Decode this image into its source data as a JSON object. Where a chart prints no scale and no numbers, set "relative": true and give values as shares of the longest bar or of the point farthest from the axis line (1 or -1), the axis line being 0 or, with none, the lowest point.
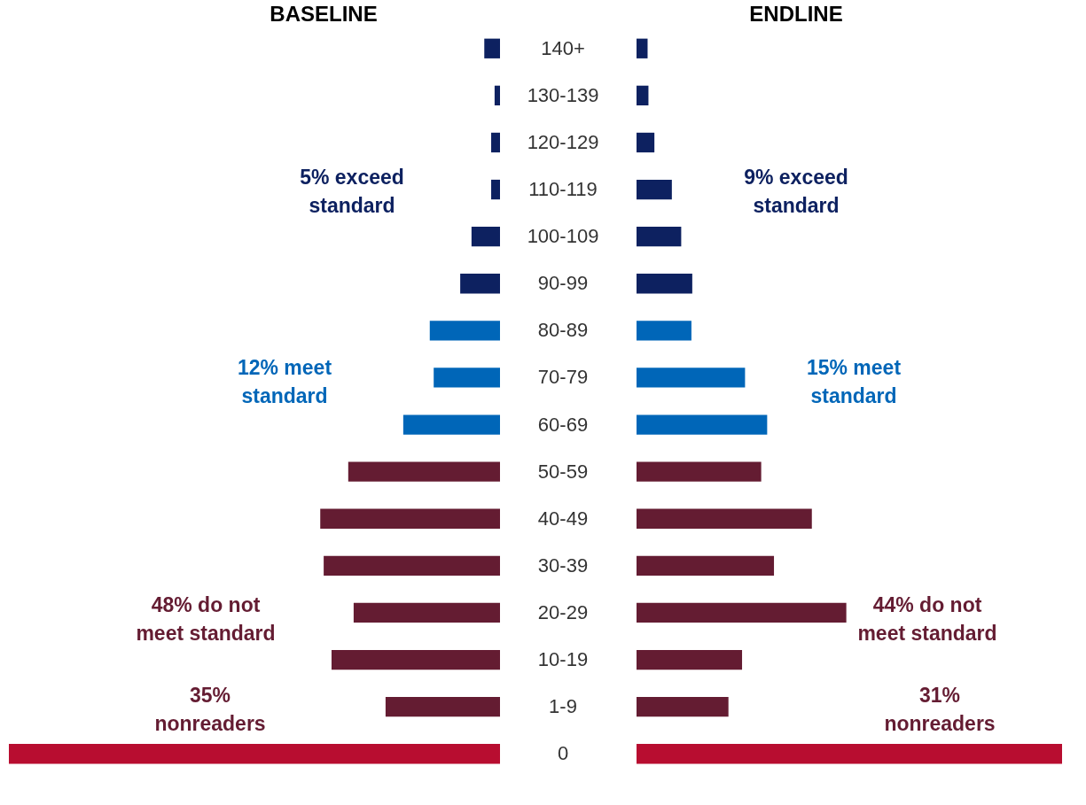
{
  "chart_data": [
    {
      "type": "bar",
      "orientation": "horizontal",
      "relative": true,
      "title": "BASELINE",
      "tick_labels": false,
      "categories": [
        "140+",
        "130-139",
        "120-129",
        "110-119",
        "100-109",
        "90-99",
        "80-89",
        "70-79",
        "60-69",
        "50-59",
        "40-49",
        "30-39",
        "20-29",
        "10-19",
        "1-9",
        "0"
      ],
      "values": [
        0.032,
        0.011,
        0.018,
        0.018,
        0.058,
        0.081,
        0.143,
        0.135,
        0.197,
        0.309,
        0.366,
        0.359,
        0.298,
        0.343,
        0.233,
        1
      ],
      "colors": [
        "#0d2160",
        "#0d2160",
        "#0d2160",
        "#0d2160",
        "#0d2160",
        "#0d2160",
        "#0066b8",
        "#0066b8",
        "#0066b8",
        "#641c32",
        "#641c32",
        "#641c32",
        "#641c32",
        "#641c32",
        "#641c32",
        "#b80d30"
      ],
      "annotations": [
        "5% exceed standard",
        "12% meet standard",
        "48% do not meet standard",
        "35% nonreaders"
      ]
    },
    {
      "type": "bar",
      "orientation": "horizontal",
      "relative": true,
      "title": "ENDLINE",
      "tick_labels": "y",
      "categories": [
        "140+",
        "130-139",
        "120-129",
        "110-119",
        "100-109",
        "90-99",
        "80-89",
        "70-79",
        "60-69",
        "50-59",
        "40-49",
        "30-39",
        "20-29",
        "10-19",
        "1-9",
        "0"
      ],
      "values": [
        0.026,
        0.028,
        0.042,
        0.083,
        0.105,
        0.131,
        0.129,
        0.255,
        0.307,
        0.293,
        0.412,
        0.323,
        0.493,
        0.248,
        0.216,
        1
      ],
      "colors": [
        "#0d2160",
        "#0d2160",
        "#0d2160",
        "#0d2160",
        "#0d2160",
        "#0d2160",
        "#0066b8",
        "#0066b8",
        "#0066b8",
        "#641c32",
        "#641c32",
        "#641c32",
        "#641c32",
        "#641c32",
        "#641c32",
        "#b80d30"
      ],
      "annotations": [
        "9% exceed standard",
        "15% meet standard",
        "44% do not meet standard",
        "31% nonreaders"
      ]
    }
  ]
}
